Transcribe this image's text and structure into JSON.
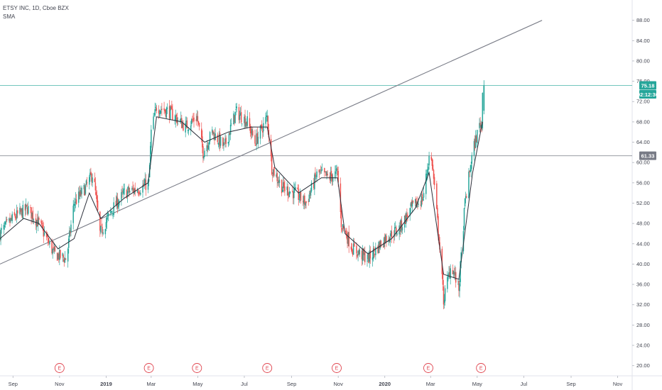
{
  "legend": {
    "symbol_line": "ETSY INC, 1D, Cboe BZX",
    "indicator": "SMA"
  },
  "colors": {
    "up": "#26a69a",
    "down": "#ef5350",
    "sma": "#2a2e39",
    "trendline": "#787b86",
    "hline": "#9598a1",
    "last_price_bg": "#26a69a",
    "level_bg": "#787b86",
    "earnings": "#e0454f"
  },
  "chart_data": {
    "type": "candlestick",
    "title": "ETSY INC, 1D, Cboe BZX",
    "indicator": "SMA",
    "y_axis": {
      "range": [
        18,
        92
      ],
      "ticks": [
        20,
        24,
        28,
        32,
        36,
        40,
        44,
        48,
        52,
        56,
        60,
        64,
        68,
        72,
        76,
        80,
        84,
        88
      ],
      "tick_labels": [
        "20.00",
        "24.00",
        "28.00",
        "32.00",
        "36.00",
        "40.00",
        "44.00",
        "48.00",
        "52.00",
        "56.00",
        "60.00",
        "64.00",
        "68.00",
        "72.00",
        "76.00",
        "80.00",
        "84.00",
        "88.00"
      ],
      "side": "right"
    },
    "x_axis": {
      "range": [
        "2018-08-15",
        "2020-11-20"
      ],
      "ticks": [
        {
          "date": "2018-09-01",
          "label": "Sep",
          "bold": false
        },
        {
          "date": "2018-11-01",
          "label": "Nov",
          "bold": false
        },
        {
          "date": "2019-01-01",
          "label": "2019",
          "bold": true
        },
        {
          "date": "2019-03-01",
          "label": "Mar",
          "bold": false
        },
        {
          "date": "2019-05-01",
          "label": "May",
          "bold": false
        },
        {
          "date": "2019-07-01",
          "label": "Jul",
          "bold": false
        },
        {
          "date": "2019-09-01",
          "label": "Sep",
          "bold": false
        },
        {
          "date": "2019-11-01",
          "label": "Nov",
          "bold": false
        },
        {
          "date": "2020-01-01",
          "label": "2020",
          "bold": true
        },
        {
          "date": "2020-03-01",
          "label": "Mar",
          "bold": false
        },
        {
          "date": "2020-05-01",
          "label": "May",
          "bold": false
        },
        {
          "date": "2020-07-01",
          "label": "Jul",
          "bold": false
        },
        {
          "date": "2020-09-01",
          "label": "Sep",
          "bold": false
        },
        {
          "date": "2020-11-01",
          "label": "Nov",
          "bold": false
        }
      ]
    },
    "price_path": [
      [
        "2018-08-15",
        46
      ],
      [
        "2018-09-01",
        49
      ],
      [
        "2018-09-20",
        51
      ],
      [
        "2018-10-05",
        48
      ],
      [
        "2018-10-25",
        42
      ],
      [
        "2018-11-10",
        41
      ],
      [
        "2018-11-20",
        52
      ],
      [
        "2018-12-05",
        55
      ],
      [
        "2018-12-15",
        58
      ],
      [
        "2018-12-24",
        46
      ],
      [
        "2019-01-10",
        51
      ],
      [
        "2019-01-25",
        54
      ],
      [
        "2019-02-15",
        55
      ],
      [
        "2019-02-26",
        56
      ],
      [
        "2019-03-01",
        66
      ],
      [
        "2019-03-08",
        71
      ],
      [
        "2019-03-25",
        70
      ],
      [
        "2019-04-15",
        67
      ],
      [
        "2019-04-30",
        69
      ],
      [
        "2019-05-08",
        62
      ],
      [
        "2019-05-20",
        66
      ],
      [
        "2019-06-05",
        63
      ],
      [
        "2019-06-20",
        70
      ],
      [
        "2019-07-05",
        68
      ],
      [
        "2019-07-15",
        64
      ],
      [
        "2019-07-25",
        67
      ],
      [
        "2019-07-31",
        69
      ],
      [
        "2019-08-06",
        59
      ],
      [
        "2019-08-20",
        55
      ],
      [
        "2019-09-05",
        54
      ],
      [
        "2019-09-20",
        52
      ],
      [
        "2019-10-05",
        58
      ],
      [
        "2019-10-20",
        57
      ],
      [
        "2019-10-31",
        58
      ],
      [
        "2019-11-05",
        48
      ],
      [
        "2019-11-20",
        43
      ],
      [
        "2019-12-10",
        41
      ],
      [
        "2020-01-01",
        45
      ],
      [
        "2020-01-20",
        47
      ],
      [
        "2020-02-05",
        51
      ],
      [
        "2020-02-20",
        53
      ],
      [
        "2020-02-28",
        61
      ],
      [
        "2020-03-03",
        60
      ],
      [
        "2020-03-12",
        45
      ],
      [
        "2020-03-18",
        33
      ],
      [
        "2020-03-28",
        40
      ],
      [
        "2020-04-07",
        35
      ],
      [
        "2020-04-15",
        52
      ],
      [
        "2020-04-25",
        62
      ],
      [
        "2020-05-05",
        68
      ],
      [
        "2020-05-07",
        67
      ],
      [
        "2020-05-08",
        75
      ]
    ],
    "sma": [
      [
        "2018-08-15",
        45
      ],
      [
        "2018-09-15",
        49
      ],
      [
        "2018-10-05",
        48
      ],
      [
        "2018-10-30",
        43
      ],
      [
        "2018-11-20",
        45
      ],
      [
        "2018-12-10",
        54
      ],
      [
        "2018-12-25",
        49
      ],
      [
        "2019-01-25",
        53
      ],
      [
        "2019-02-25",
        56
      ],
      [
        "2019-03-08",
        69
      ],
      [
        "2019-04-10",
        68
      ],
      [
        "2019-05-10",
        64
      ],
      [
        "2019-06-10",
        66
      ],
      [
        "2019-07-10",
        67
      ],
      [
        "2019-07-31",
        67
      ],
      [
        "2019-08-10",
        59
      ],
      [
        "2019-09-10",
        54
      ],
      [
        "2019-10-10",
        57
      ],
      [
        "2019-10-31",
        57
      ],
      [
        "2019-11-10",
        46
      ],
      [
        "2019-12-10",
        42
      ],
      [
        "2020-01-10",
        45
      ],
      [
        "2020-02-10",
        51
      ],
      [
        "2020-02-28",
        58
      ],
      [
        "2020-03-18",
        38
      ],
      [
        "2020-04-07",
        37
      ],
      [
        "2020-04-25",
        58
      ],
      [
        "2020-05-08",
        68
      ]
    ],
    "trendline": {
      "start": [
        "2018-08-15",
        40
      ],
      "end": [
        "2020-07-25",
        88
      ]
    },
    "horizontal_lines": [
      {
        "price": 75.18,
        "label": "75.18",
        "color": "#26a69a"
      },
      {
        "price": 61.33,
        "label": "61.33",
        "color": "#787b86"
      }
    ],
    "countdown_label": "02:12:36",
    "earnings_markers": {
      "label": "E",
      "dates": [
        "2018-11-01",
        "2019-02-26",
        "2019-04-30",
        "2019-07-31",
        "2019-10-30",
        "2020-02-27",
        "2020-05-06"
      ]
    },
    "grid": false,
    "legend_position": "top-left"
  }
}
